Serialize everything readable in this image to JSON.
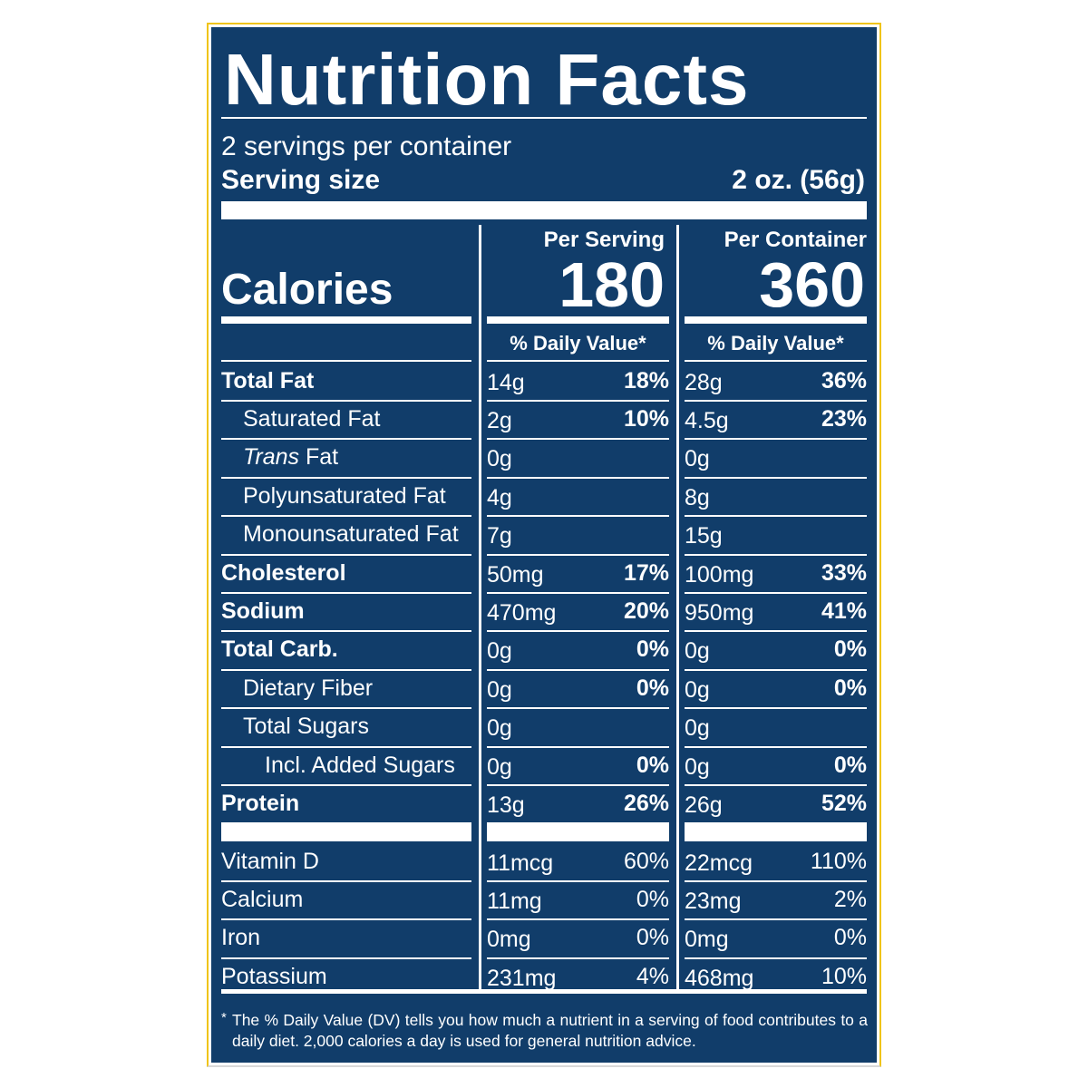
{
  "title": "Nutrition Facts",
  "servings": "2 servings per container",
  "serving_size": {
    "label": "Serving size",
    "value": "2 oz. (56g)"
  },
  "calories": {
    "label": "Calories",
    "per_serving_header": "Per Serving",
    "per_serving": "180",
    "per_container_header": "Per Container",
    "per_container": "360"
  },
  "daily_value_header": [
    "% Daily Value*",
    "% Daily Value*"
  ],
  "nutrients": [
    {
      "name": "Total Fat",
      "per_serving": [
        "14g",
        "18%"
      ],
      "per_container": [
        "28g",
        "36%"
      ]
    },
    {
      "name": "Saturated Fat",
      "per_serving": [
        "2g",
        "10%"
      ],
      "per_container": [
        "4.5g",
        "23%"
      ]
    },
    {
      "name_italic": "Trans",
      "name": " Fat",
      "per_serving": [
        "0g",
        null
      ],
      "per_container": [
        "0g",
        null
      ]
    },
    {
      "name": "Polyunsaturated Fat",
      "per_serving": [
        "4g",
        null
      ],
      "per_container": [
        "8g",
        null
      ]
    },
    {
      "name": "Monounsaturated Fat",
      "per_serving": [
        "7g",
        null
      ],
      "per_container": [
        "15g",
        null
      ]
    },
    {
      "name": "Cholesterol",
      "per_serving": [
        "50mg",
        "17%"
      ],
      "per_container": [
        "100mg",
        "33%"
      ]
    },
    {
      "name": "Sodium",
      "per_serving": [
        "470mg",
        "20%"
      ],
      "per_container": [
        "950mg",
        "41%"
      ]
    },
    {
      "name": "Total Carb.",
      "per_serving": [
        "0g",
        "0%"
      ],
      "per_container": [
        "0g",
        "0%"
      ]
    },
    {
      "name": "Dietary Fiber",
      "per_serving": [
        "0g",
        "0%"
      ],
      "per_container": [
        "0g",
        "0%"
      ]
    },
    {
      "name": "Total Sugars",
      "per_serving": [
        "0g",
        null
      ],
      "per_container": [
        "0g",
        null
      ]
    },
    {
      "name": "Incl. Added Sugars",
      "per_serving": [
        "0g",
        "0%"
      ],
      "per_container": [
        "0g",
        "0%"
      ]
    },
    {
      "name": "Protein",
      "per_serving": [
        "13g",
        "26%"
      ],
      "per_container": [
        "26g",
        "52%"
      ]
    }
  ],
  "vitamins": [
    {
      "name": "Vitamin D",
      "per_serving": [
        "11mcg",
        "60%"
      ],
      "per_container": [
        "22mcg",
        "110%"
      ]
    },
    {
      "name": "Calcium",
      "per_serving": [
        "11mg",
        "0%"
      ],
      "per_container": [
        "23mg",
        "2%"
      ]
    },
    {
      "name": "Iron",
      "per_serving": [
        "0mg",
        "0%"
      ],
      "per_container": [
        "0mg",
        "0%"
      ]
    },
    {
      "name": "Potassium",
      "per_serving": [
        "231mg",
        "4%"
      ],
      "per_container": [
        "468mg",
        "10%"
      ]
    }
  ],
  "footnote": {
    "mark": "*",
    "text": "The % Daily Value (DV) tells you how much a nutrient in a serving of food contributes to a daily diet. 2,000 calories a day is used for general nutrition advice."
  }
}
